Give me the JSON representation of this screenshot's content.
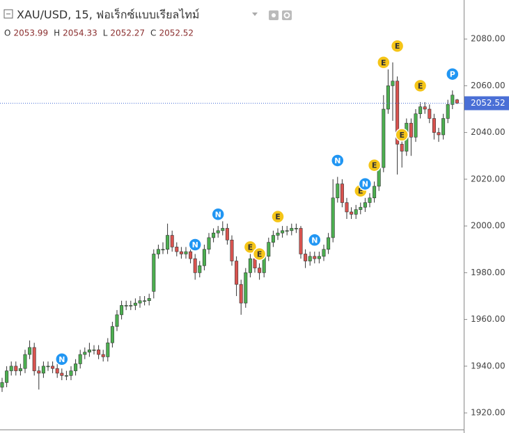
{
  "chart_data": {
    "type": "candlestick",
    "title": "XAU/USD, 15, ฟอเร็กซ์แบบเรียลไทม์",
    "ohlc_labels": [
      "O",
      "H",
      "L",
      "C"
    ],
    "up_color": "#4caf50",
    "down_color": "#d9534f",
    "ylim": [
      1911.4,
      2096.7
    ],
    "yticks": [
      {
        "value": 1920,
        "label": "1920.00"
      },
      {
        "value": 1940,
        "label": "1940.00"
      },
      {
        "value": 1960,
        "label": "1960.00"
      },
      {
        "value": 1980,
        "label": "1980.00"
      },
      {
        "value": 2000,
        "label": "2000.00"
      },
      {
        "value": 2020,
        "label": "2020.00"
      },
      {
        "value": 2040,
        "label": "2040.00"
      },
      {
        "value": 2060,
        "label": "2060.00"
      },
      {
        "value": 2080,
        "label": "2080.00"
      }
    ],
    "open": [
      1931,
      1933,
      1938,
      1940,
      1938,
      1939,
      1945,
      1948,
      1938,
      1937,
      1940,
      1940,
      1939,
      1937,
      1936,
      1936,
      1938,
      1941,
      1945,
      1946,
      1947,
      1947,
      1945,
      1944,
      1950,
      1957,
      1962,
      1966,
      1966,
      1966,
      1967,
      1968,
      1968,
      1972,
      1988,
      1990,
      1990,
      1996,
      1991,
      1989,
      1988,
      1989,
      1986,
      1980,
      1983,
      1990,
      1995,
      1997,
      1998,
      1999,
      1994,
      1985,
      1975,
      1967,
      1980,
      1986,
      1982,
      1980,
      1987,
      1993,
      1996,
      1997,
      1998,
      1998,
      1999,
      1999,
      1988,
      1985,
      1987,
      1986,
      1987,
      1990,
      1995,
      2012,
      2018,
      2010,
      2006,
      2005,
      2007,
      2008,
      2010,
      2012,
      2017,
      2025,
      2050,
      2060,
      2062,
      2035,
      2032,
      2044,
      2038,
      2048,
      2051,
      2050,
      2046,
      2040,
      2039,
      2046,
      2052,
      2053.99
    ],
    "high": [
      1935,
      1940,
      1942,
      1942,
      1941,
      1947,
      1951,
      1950,
      1940,
      1942,
      1942,
      1942,
      1941,
      1939,
      1938,
      1940,
      1943,
      1947,
      1948,
      1950,
      1949,
      1949,
      1947,
      1952,
      1959,
      1964,
      1968,
      1968,
      1968,
      1969,
      1970,
      1970,
      1971,
      1990,
      1992,
      1993,
      2001,
      1998,
      1993,
      1991,
      1991,
      1991,
      1988,
      1985,
      1992,
      1997,
      1999,
      2000,
      2002,
      2001,
      1996,
      1987,
      1977,
      1982,
      1988,
      1988,
      1984,
      1989,
      1995,
      1998,
      1999,
      2000,
      2000,
      2001,
      2001,
      2000,
      1990,
      1989,
      1989,
      1989,
      1992,
      1997,
      2020,
      2021,
      2020,
      2012,
      2008,
      2009,
      2010,
      2012,
      2014,
      2019,
      2027,
      2056,
      2067,
      2070,
      2064,
      2038,
      2046,
      2046,
      2050,
      2053,
      2053,
      2052,
      2048,
      2042,
      2048,
      2054,
      2058,
      2054.33
    ],
    "low": [
      1929,
      1931,
      1936,
      1936,
      1936,
      1937,
      1943,
      1936,
      1930,
      1935,
      1938,
      1937,
      1935,
      1934,
      1934,
      1934,
      1936,
      1939,
      1943,
      1944,
      1945,
      1943,
      1942,
      1942,
      1948,
      1955,
      1960,
      1964,
      1964,
      1964,
      1965,
      1966,
      1966,
      1969,
      1986,
      1988,
      1988,
      1989,
      1987,
      1986,
      1986,
      1984,
      1977,
      1978,
      1981,
      1988,
      1993,
      1995,
      1996,
      1992,
      1983,
      1970,
      1962,
      1965,
      1978,
      1980,
      1977,
      1978,
      1985,
      1991,
      1994,
      1995,
      1996,
      1996,
      1997,
      1986,
      1982,
      1983,
      1984,
      1984,
      1985,
      1988,
      1993,
      2010,
      2008,
      2003,
      2003,
      2003,
      2005,
      2006,
      2008,
      2010,
      2015,
      2023,
      2048,
      2045,
      2022,
      2025,
      2030,
      2030,
      2036,
      2046,
      2048,
      2044,
      2037,
      2036,
      2037,
      2044,
      2050,
      2052.27
    ],
    "close": [
      1933,
      1938,
      1940,
      1938,
      1939,
      1945,
      1948,
      1938,
      1937,
      1940,
      1940,
      1939,
      1937,
      1936,
      1936,
      1938,
      1941,
      1945,
      1946,
      1947,
      1947,
      1945,
      1944,
      1950,
      1957,
      1962,
      1966,
      1966,
      1966,
      1967,
      1968,
      1968,
      1969,
      1988,
      1990,
      1990,
      1996,
      1991,
      1989,
      1988,
      1989,
      1986,
      1980,
      1983,
      1990,
      1995,
      1997,
      1998,
      1999,
      1994,
      1985,
      1975,
      1967,
      1980,
      1986,
      1982,
      1980,
      1987,
      1993,
      1996,
      1997,
      1998,
      1998,
      1999,
      1999,
      1988,
      1985,
      1987,
      1986,
      1987,
      1990,
      1995,
      2012,
      2018,
      2010,
      2006,
      2005,
      2007,
      2008,
      2010,
      2012,
      2017,
      2025,
      2050,
      2060,
      2062,
      2035,
      2032,
      2044,
      2038,
      2048,
      2051,
      2050,
      2046,
      2040,
      2039,
      2046,
      2052,
      2056,
      2052.52
    ],
    "events": [
      {
        "label": "N",
        "index": 13,
        "value": 1943,
        "color": "#2196f3"
      },
      {
        "label": "N",
        "index": 42,
        "value": 1992,
        "color": "#2196f3"
      },
      {
        "label": "N",
        "index": 47,
        "value": 2005,
        "color": "#2196f3"
      },
      {
        "label": "E",
        "index": 54,
        "value": 1991,
        "color": "#f5c518"
      },
      {
        "label": "E",
        "index": 56,
        "value": 1988,
        "color": "#f5c518"
      },
      {
        "label": "E",
        "index": 60,
        "value": 2004,
        "color": "#f5c518"
      },
      {
        "label": "N",
        "index": 68,
        "value": 1994,
        "color": "#2196f3"
      },
      {
        "label": "N",
        "index": 73,
        "value": 2028,
        "color": "#2196f3"
      },
      {
        "label": "E",
        "index": 78,
        "value": 2015,
        "color": "#f5c518"
      },
      {
        "label": "N",
        "index": 79,
        "value": 2018,
        "color": "#2196f3"
      },
      {
        "label": "E",
        "index": 81,
        "value": 2026,
        "color": "#f5c518"
      },
      {
        "label": "E",
        "index": 83,
        "value": 2070,
        "color": "#f5c518"
      },
      {
        "label": "E",
        "index": 86,
        "value": 2077,
        "color": "#f5c518"
      },
      {
        "label": "E",
        "index": 87,
        "value": 2039,
        "color": "#f5c518"
      },
      {
        "label": "E",
        "index": 91,
        "value": 2060,
        "color": "#f5c518"
      },
      {
        "label": "P",
        "index": 98,
        "value": 2065,
        "color": "#2196f3"
      }
    ]
  }
}
